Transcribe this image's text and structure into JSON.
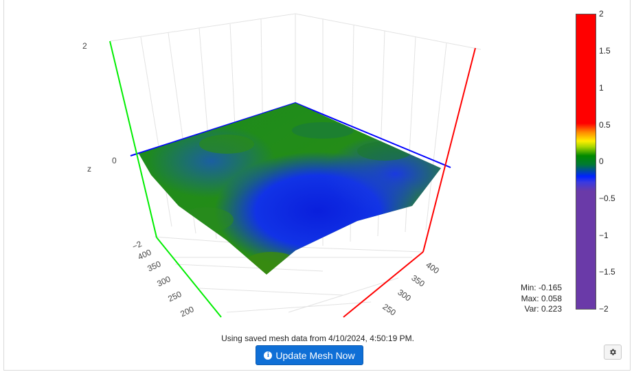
{
  "plot": {
    "z_axis_title": "z",
    "z_ticks": [
      "2",
      "0",
      "−2"
    ],
    "left_axis_ticks": [
      "400",
      "350",
      "300",
      "250",
      "200"
    ],
    "right_axis_ticks": [
      "400",
      "350",
      "300",
      "250"
    ],
    "colors": {
      "x_axis": "#ff0000",
      "y_axis": "#00ee00",
      "bed_outline": "#0000ff"
    }
  },
  "colorbar": {
    "labels": [
      "2",
      "1.5",
      "1",
      "0.5",
      "0",
      "−0.5",
      "−1",
      "−1.5",
      "−2"
    ]
  },
  "stats": {
    "min": "Min: -0.165",
    "max": "Max: 0.058",
    "var": "Var: 0.223"
  },
  "status": {
    "mesh_message": "Using saved mesh data from 4/10/2024, 4:50:19 PM."
  },
  "buttons": {
    "update_mesh_label": "Update Mesh Now",
    "update_icon": "info-circle-icon",
    "settings_icon": "gear-icon"
  }
}
